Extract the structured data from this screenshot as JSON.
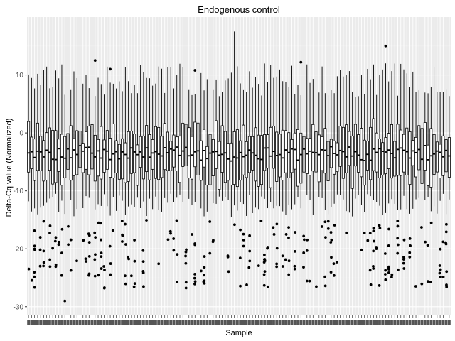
{
  "chart_data": {
    "type": "boxplot",
    "title": "Endogenous control",
    "xlabel": "Sample",
    "ylabel": "Delta-Cq value (Normalized)",
    "ylim": [
      -31.5,
      20
    ],
    "yticks": [
      -30,
      -20,
      -10,
      0,
      10
    ],
    "grid": true,
    "legend": "none",
    "sample_count": 140,
    "x_tick_labels_legible": false,
    "box_summary_typical": {
      "whisker_low": -12.5,
      "q1": -7.5,
      "median": -3.5,
      "q3": 0,
      "whisker_high": 9
    },
    "extremes": {
      "max_whisker": 17.5,
      "min_point": -29,
      "outlier_high_examples": [
        12.5,
        11,
        10.8,
        12.2,
        15
      ]
    },
    "colors": {
      "panel_background": "#ebebeb",
      "grid_major": "#ffffff",
      "grid_minor": "#f2f2f2",
      "box_outline": "#000000",
      "outlier_point": "#000000"
    }
  }
}
